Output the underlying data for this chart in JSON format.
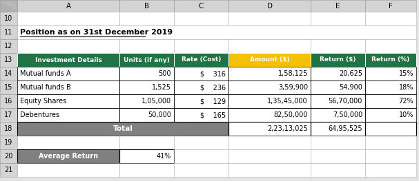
{
  "title": "Position as on 31st December 2019",
  "col_letters": [
    "A",
    "B",
    "C",
    "D",
    "E",
    "F"
  ],
  "row_numbers": [
    "10",
    "11",
    "12",
    "13",
    "14",
    "15",
    "16",
    "17",
    "18",
    "19",
    "20",
    "21"
  ],
  "header_row": [
    "Investment Details",
    "Units (if any)",
    "Rate (Cost)",
    "Amount ($)",
    "Return ($)",
    "Return (%)"
  ],
  "data_rows": [
    [
      "Mutual funds A",
      "500",
      "$    316",
      "1,58,125",
      "20,625",
      "15%"
    ],
    [
      "Mutual funds B",
      "1,525",
      "$    236",
      "3,59,900",
      "54,900",
      "18%"
    ],
    [
      "Equity Shares",
      "1,05,000",
      "$    129",
      "1,35,45,000",
      "56,70,000",
      "72%"
    ],
    [
      "Debentures",
      "50,000",
      "$    165",
      "82,50,000",
      "7,50,000",
      "10%"
    ]
  ],
  "total_row": [
    "",
    "",
    "Total",
    "2,23,13,025",
    "64,95,525",
    ""
  ],
  "avg_return_label": "Average Return",
  "avg_return_value": "41%",
  "header_bg": "#217346",
  "header_fg": "#ffffff",
  "header_amount_bg": "#f5c000",
  "header_return_bg": "#217346",
  "total_bg": "#808080",
  "total_fg": "#ffffff",
  "avg_bg": "#808080",
  "avg_fg": "#ffffff",
  "row_bg_white": "#ffffff",
  "grid_color": "#000000",
  "excel_header_bg": "#d4d4d4",
  "excel_corner_bg": "#b0b0b0",
  "excel_header_fg": "#000000",
  "fig_bg": "#e4e4e4",
  "cell_border_light": "#bdbdbd",
  "cell_border_dark": "#000000"
}
